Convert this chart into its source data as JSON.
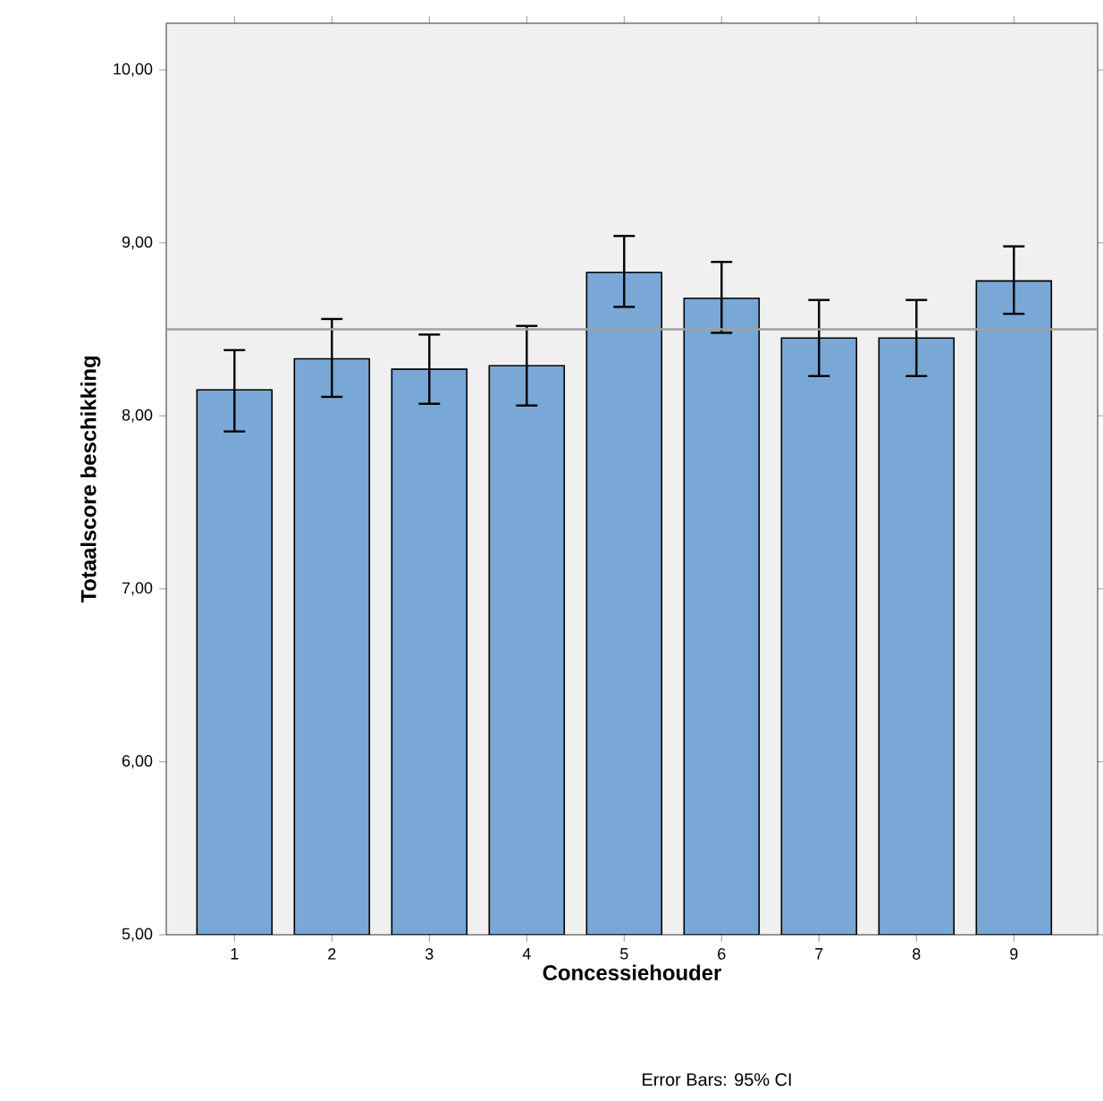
{
  "chart_data": {
    "type": "bar",
    "xlabel": "Concessiehouder",
    "ylabel": "Totaalscore beschikking",
    "categories": [
      "1",
      "2",
      "3",
      "4",
      "5",
      "6",
      "7",
      "8",
      "9"
    ],
    "values": [
      8.15,
      8.33,
      8.27,
      8.29,
      8.83,
      8.68,
      8.45,
      8.45,
      8.78
    ],
    "errors": [
      [
        7.91,
        8.38
      ],
      [
        8.11,
        8.56
      ],
      [
        8.07,
        8.47
      ],
      [
        8.06,
        8.52
      ],
      [
        8.63,
        9.04
      ],
      [
        8.48,
        8.89
      ],
      [
        8.23,
        8.67
      ],
      [
        8.23,
        8.67
      ],
      [
        8.59,
        8.98
      ]
    ],
    "color": "#79a8d6",
    "ylim": [
      5,
      10.27
    ],
    "yticks": [
      {
        "value": 5,
        "label": "5,00"
      },
      {
        "value": 6,
        "label": "6,00"
      },
      {
        "value": 7,
        "label": "7,00"
      },
      {
        "value": 8,
        "label": "8,00"
      },
      {
        "value": 9,
        "label": "9,00"
      },
      {
        "value": 10,
        "label": "10,00"
      }
    ],
    "ref_lines": [
      {
        "axis": "y",
        "value": 8.5,
        "color": "#a0a0a0"
      }
    ],
    "annotations": [
      "Error Bars: 95% CI"
    ]
  }
}
